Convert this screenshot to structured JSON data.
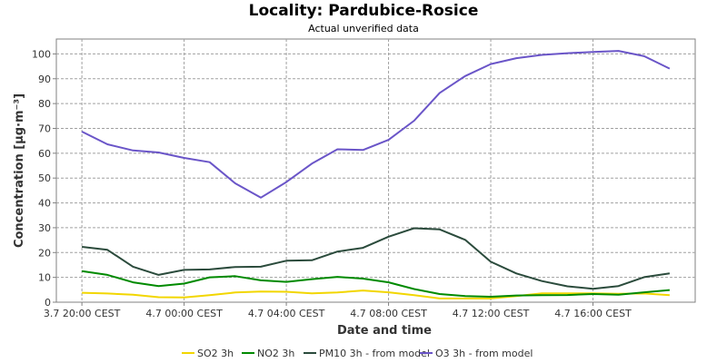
{
  "chart_data": {
    "type": "line",
    "title": "Locality: Pardubice-Rosice",
    "subtitle": "Actual unverified data",
    "xlabel": "Date and time",
    "ylabel": "Concentration [µg·m⁻³]",
    "ylim": [
      0,
      106
    ],
    "yticks": [
      0,
      10,
      20,
      30,
      40,
      50,
      60,
      70,
      80,
      90,
      100
    ],
    "xlim": [
      "2024-07-03T19:00",
      "2024-07-04T20:00"
    ],
    "xticks": [
      {
        "at": "2024-07-03T20:00",
        "label": "3.7 20:00 CEST"
      },
      {
        "at": "2024-07-04T00:00",
        "label": "4.7 00:00 CEST"
      },
      {
        "at": "2024-07-04T04:00",
        "label": "4.7 04:00 CEST"
      },
      {
        "at": "2024-07-04T08:00",
        "label": "4.7 08:00 CEST"
      },
      {
        "at": "2024-07-04T12:00",
        "label": "4.7 12:00 CEST"
      },
      {
        "at": "2024-07-04T16:00",
        "label": "4.7 16:00 CEST"
      }
    ],
    "grid": true,
    "legend_position": "bottom",
    "x": [
      "2024-07-03T20:00",
      "2024-07-03T21:00",
      "2024-07-03T22:00",
      "2024-07-03T23:00",
      "2024-07-04T00:00",
      "2024-07-04T01:00",
      "2024-07-04T02:00",
      "2024-07-04T03:00",
      "2024-07-04T04:00",
      "2024-07-04T05:00",
      "2024-07-04T06:00",
      "2024-07-04T07:00",
      "2024-07-04T08:00",
      "2024-07-04T09:00",
      "2024-07-04T10:00",
      "2024-07-04T11:00",
      "2024-07-04T12:00",
      "2024-07-04T13:00",
      "2024-07-04T14:00",
      "2024-07-04T15:00",
      "2024-07-04T16:00",
      "2024-07-04T17:00",
      "2024-07-04T18:00",
      "2024-07-04T19:00"
    ],
    "series": [
      {
        "name": "SO2 3h",
        "color": "#f2d600",
        "values": [
          3.8,
          3.5,
          3.0,
          2.0,
          1.9,
          2.8,
          3.9,
          4.3,
          4.2,
          3.6,
          3.9,
          4.7,
          4.0,
          2.8,
          1.5,
          1.5,
          1.5,
          2.5,
          3.6,
          3.6,
          3.6,
          3.4,
          3.5,
          2.8
        ]
      },
      {
        "name": "NO2 3h",
        "color": "#008a00",
        "values": [
          12.5,
          11.0,
          8.0,
          6.5,
          7.5,
          10.0,
          10.5,
          8.8,
          8.2,
          9.3,
          10.2,
          9.5,
          8.0,
          5.3,
          3.3,
          2.5,
          2.2,
          2.7,
          2.8,
          2.9,
          3.3,
          3.0,
          4.0,
          4.9
        ]
      },
      {
        "name": "PM10 3h - from model",
        "color": "#2b4b3c",
        "values": [
          22.3,
          21.1,
          14.3,
          11.0,
          13.0,
          13.2,
          14.2,
          14.3,
          16.7,
          16.9,
          20.4,
          21.9,
          26.4,
          29.8,
          29.3,
          25.1,
          16.3,
          11.6,
          8.5,
          6.4,
          5.4,
          6.5,
          10.1,
          11.6
        ]
      },
      {
        "name": "O3 3h - from model",
        "color": "#6a55c8",
        "values": [
          68.7,
          63.6,
          61.1,
          60.3,
          58.1,
          56.4,
          47.9,
          42.1,
          48.4,
          55.8,
          61.6,
          61.3,
          65.4,
          73.1,
          84.3,
          91.1,
          95.9,
          98.3,
          99.6,
          100.3,
          100.8,
          101.2,
          99.1,
          94.1
        ]
      }
    ]
  }
}
